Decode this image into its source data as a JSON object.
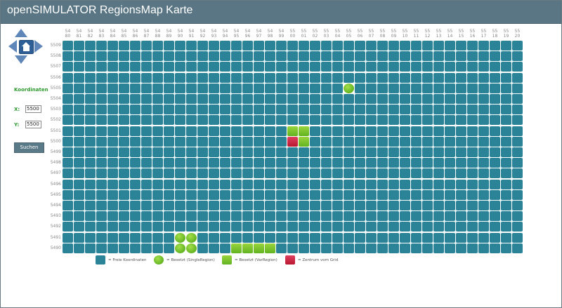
{
  "app": {
    "title": "openSIMULATOR RegionsMap Karte"
  },
  "sidebar": {
    "coords_label": "Koordinaten",
    "x_label": "X:",
    "x_value": "5500",
    "y_label": "Y:",
    "y_value": "5500",
    "search_label": "Suchen"
  },
  "grid": {
    "columns": [
      [
        "54",
        "80"
      ],
      [
        "54",
        "81"
      ],
      [
        "54",
        "82"
      ],
      [
        "54",
        "83"
      ],
      [
        "54",
        "84"
      ],
      [
        "54",
        "85"
      ],
      [
        "54",
        "86"
      ],
      [
        "54",
        "87"
      ],
      [
        "54",
        "88"
      ],
      [
        "54",
        "89"
      ],
      [
        "54",
        "90"
      ],
      [
        "54",
        "91"
      ],
      [
        "54",
        "92"
      ],
      [
        "54",
        "93"
      ],
      [
        "54",
        "94"
      ],
      [
        "54",
        "95"
      ],
      [
        "54",
        "96"
      ],
      [
        "54",
        "97"
      ],
      [
        "54",
        "98"
      ],
      [
        "54",
        "99"
      ],
      [
        "55",
        "00"
      ],
      [
        "55",
        "01"
      ],
      [
        "55",
        "02"
      ],
      [
        "55",
        "03"
      ],
      [
        "55",
        "04"
      ],
      [
        "55",
        "05"
      ],
      [
        "55",
        "06"
      ],
      [
        "55",
        "07"
      ],
      [
        "55",
        "08"
      ],
      [
        "55",
        "09"
      ],
      [
        "55",
        "10"
      ],
      [
        "55",
        "11"
      ],
      [
        "55",
        "12"
      ],
      [
        "55",
        "13"
      ],
      [
        "55",
        "14"
      ],
      [
        "55",
        "15"
      ],
      [
        "55",
        "16"
      ],
      [
        "55",
        "17"
      ],
      [
        "55",
        "18"
      ],
      [
        "55",
        "19"
      ],
      [
        "55",
        "20"
      ]
    ],
    "rows": [
      "5509",
      "5508",
      "5507",
      "5506",
      "5505",
      "5504",
      "5503",
      "5502",
      "5501",
      "5500",
      "5499",
      "5498",
      "5497",
      "5496",
      "5495",
      "5494",
      "5493",
      "5492",
      "5491",
      "5490"
    ],
    "cells": [
      {
        "row": "5505",
        "col": "5505",
        "type": "single"
      },
      {
        "row": "5501",
        "col": "5500",
        "type": "var"
      },
      {
        "row": "5501",
        "col": "5501",
        "type": "var"
      },
      {
        "row": "5500",
        "col": "5500",
        "type": "center"
      },
      {
        "row": "5500",
        "col": "5501",
        "type": "var"
      },
      {
        "row": "5491",
        "col": "5490",
        "type": "single"
      },
      {
        "row": "5491",
        "col": "5491",
        "type": "single"
      },
      {
        "row": "5490",
        "col": "5490",
        "type": "single"
      },
      {
        "row": "5490",
        "col": "5491",
        "type": "single"
      },
      {
        "row": "5490",
        "col": "5495",
        "type": "var"
      },
      {
        "row": "5490",
        "col": "5496",
        "type": "var"
      },
      {
        "row": "5490",
        "col": "5497",
        "type": "var"
      },
      {
        "row": "5490",
        "col": "5498",
        "type": "var"
      }
    ]
  },
  "legend": [
    {
      "type": "free",
      "label": "= Freie Koordinaten"
    },
    {
      "type": "single",
      "label": "= Besetzt (SingleRegion)"
    },
    {
      "type": "var",
      "label": "= Besetzt (VarRegion)"
    },
    {
      "type": "center",
      "label": "= Zentrum vom Grid"
    }
  ],
  "colors": {
    "free": "#2a8396",
    "single": "#7cc531",
    "var": "#7cc531",
    "center": "#c8203d",
    "titlebar": "#5a7684",
    "accent_text": "#2e9a2e"
  }
}
